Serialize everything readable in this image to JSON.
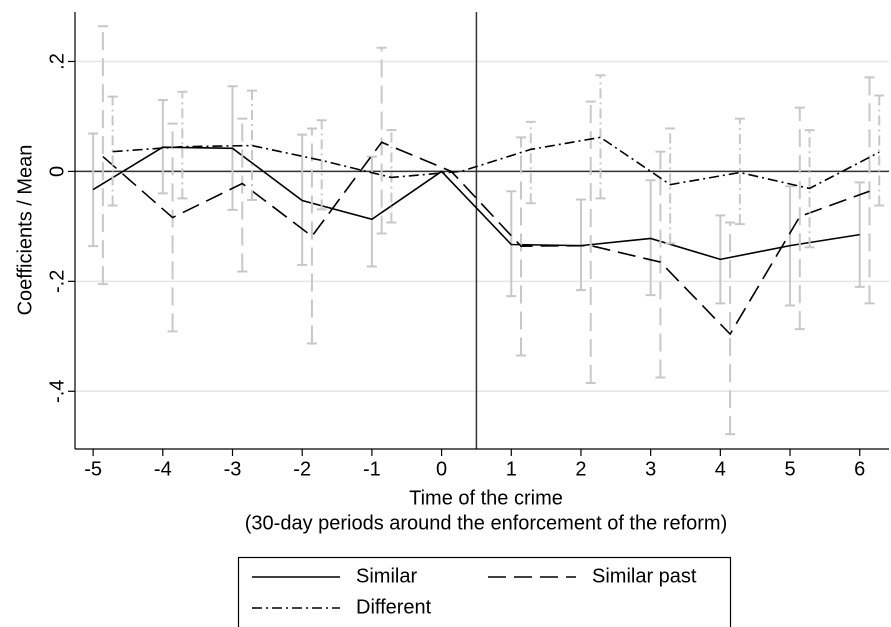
{
  "chart_data": {
    "type": "line",
    "ylabel": "Coefficients / Mean",
    "xlabel": [
      "Time of the crime",
      "(30-day periods around the enforcement of the reform)"
    ],
    "xlim": [
      -5.26,
      6.42
    ],
    "xticks": [
      -5,
      -4,
      -3,
      -2,
      -1,
      0,
      1,
      2,
      3,
      4,
      5,
      6
    ],
    "ylim": [
      -0.505,
      0.29
    ],
    "yticks": [
      {
        "value": 0.2,
        "label": ".2"
      },
      0,
      {
        "value": -0.2,
        "label": "-.2"
      },
      {
        "value": -0.4,
        "label": "-.4"
      }
    ],
    "grid": true,
    "vlines": [
      0.5
    ],
    "hlines": [
      0
    ],
    "ci_color": "#c8c8c8",
    "series": [
      {
        "name": "Similar",
        "color": "#000000",
        "dash": "solid",
        "x": [
          -5,
          -4,
          -3,
          -2,
          -1,
          0,
          1,
          2,
          3,
          4,
          5,
          6
        ],
        "values": [
          -0.033,
          0.044,
          0.042,
          -0.053,
          -0.087,
          0,
          -0.133,
          -0.135,
          -0.122,
          -0.16,
          -0.135,
          -0.115
        ],
        "lower": [
          -0.136,
          -0.04,
          -0.07,
          -0.17,
          -0.173,
          null,
          -0.227,
          -0.216,
          -0.225,
          -0.24,
          -0.244,
          -0.21
        ],
        "upper": [
          0.069,
          0.13,
          0.155,
          0.067,
          0.027,
          null,
          -0.036,
          -0.051,
          -0.016,
          -0.08,
          -0.027,
          -0.02
        ]
      },
      {
        "name": "Similar past",
        "color": "#000000",
        "dash": "dashed",
        "x": [
          -4.86,
          -3.86,
          -2.86,
          -1.86,
          -0.86,
          0.14,
          1.14,
          2.14,
          3.14,
          4.14,
          5.14,
          6.14
        ],
        "values": [
          0.027,
          -0.084,
          -0.022,
          -0.118,
          0.053,
          0,
          -0.136,
          -0.135,
          -0.165,
          -0.296,
          -0.082,
          -0.036
        ],
        "lower": [
          -0.205,
          -0.291,
          -0.182,
          -0.313,
          -0.113,
          null,
          -0.335,
          -0.385,
          -0.375,
          -0.478,
          -0.287,
          -0.24
        ],
        "upper": [
          0.264,
          0.087,
          0.096,
          0.078,
          0.225,
          null,
          0.062,
          0.127,
          0.036,
          -0.093,
          0.116,
          0.171
        ]
      },
      {
        "name": "Different",
        "color": "#000000",
        "dash": "dashdot",
        "x": [
          -4.72,
          -3.72,
          -2.72,
          -1.72,
          -0.72,
          0.28,
          1.28,
          2.28,
          3.28,
          4.28,
          5.28,
          6.28
        ],
        "values": [
          0.036,
          0.045,
          0.047,
          0.02,
          -0.011,
          0,
          0.04,
          0.062,
          -0.024,
          -0.002,
          -0.031,
          0.035
        ],
        "lower": [
          -0.062,
          -0.049,
          -0.052,
          -0.069,
          -0.093,
          null,
          -0.058,
          -0.049,
          -0.131,
          -0.096,
          -0.138,
          -0.062
        ],
        "upper": [
          0.136,
          0.145,
          0.147,
          0.093,
          0.075,
          null,
          0.09,
          0.175,
          0.078,
          0.096,
          0.075,
          0.138
        ]
      }
    ]
  }
}
